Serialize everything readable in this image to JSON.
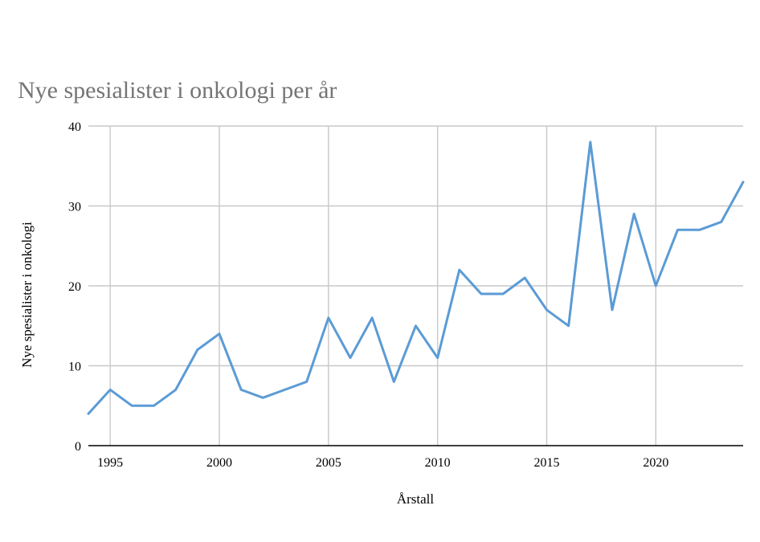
{
  "chart_data": {
    "type": "line",
    "title": "Nye spesialister i onkologi per år",
    "xlabel": "Årstall",
    "ylabel": "Nye spesialister i onkologi",
    "xlim": [
      1994,
      2024
    ],
    "ylim": [
      0,
      40
    ],
    "xticks": [
      "1995",
      "2000",
      "2005",
      "2010",
      "2015",
      "2020"
    ],
    "yticks": [
      "0",
      "10",
      "20",
      "30",
      "40"
    ],
    "grid": true,
    "colors": {
      "series": "#5b9bd5",
      "grid": "#c8c8c8",
      "title": "#757575"
    },
    "x": [
      1994,
      1995,
      1996,
      1997,
      1998,
      1999,
      2000,
      2001,
      2002,
      2003,
      2004,
      2005,
      2006,
      2007,
      2008,
      2009,
      2010,
      2011,
      2012,
      2013,
      2014,
      2015,
      2016,
      2017,
      2018,
      2019,
      2020,
      2021,
      2022,
      2023,
      2024
    ],
    "series": [
      {
        "values": [
          4,
          7,
          5,
          5,
          7,
          12,
          14,
          7,
          6,
          7,
          8,
          16,
          11,
          16,
          8,
          15,
          11,
          22,
          19,
          19,
          21,
          17,
          15,
          38,
          17,
          29,
          20,
          27,
          27,
          28,
          33
        ]
      }
    ]
  }
}
